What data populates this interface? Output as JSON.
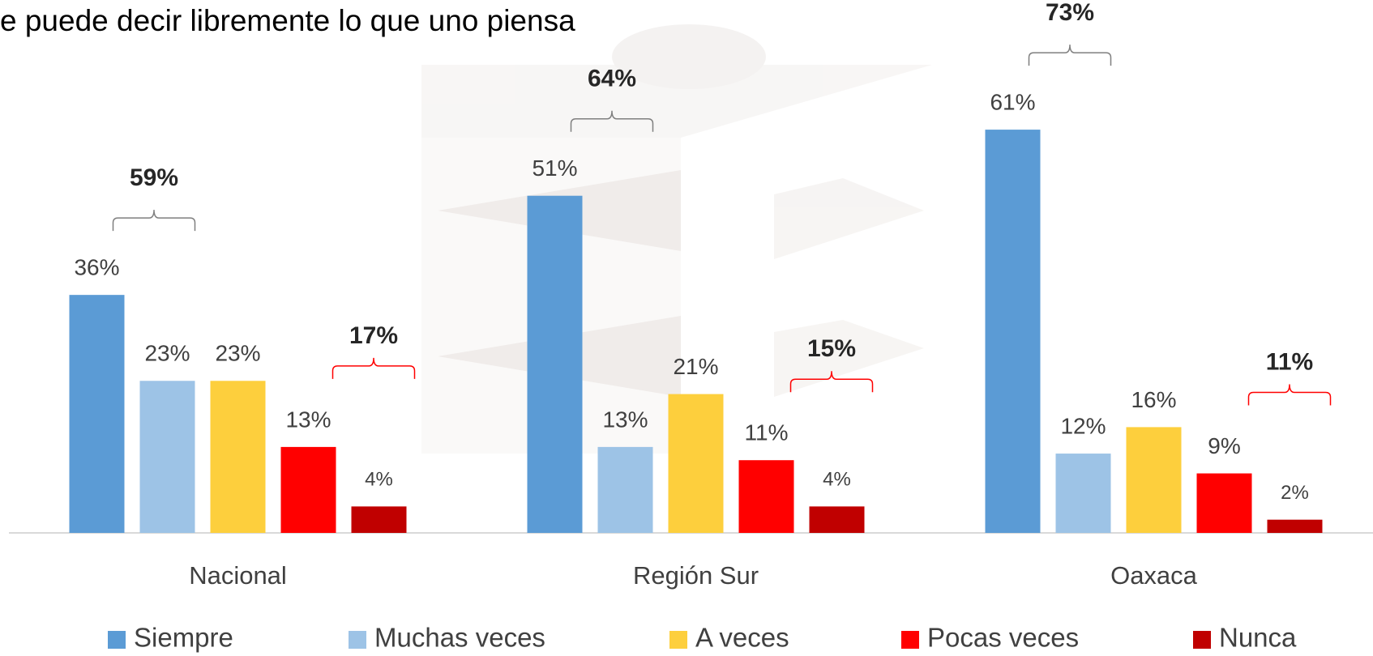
{
  "chart_data": {
    "type": "bar",
    "title": "e puede decir libremente lo que uno piensa",
    "categories": [
      "Nacional",
      "Región Sur",
      "Oaxaca"
    ],
    "series": [
      {
        "name": "Siempre",
        "color": "#5b9bd5",
        "values": [
          36,
          51,
          61
        ],
        "value_labels": [
          "36%",
          "51%",
          "61%"
        ]
      },
      {
        "name": "Muchas veces",
        "color": "#9dc3e6",
        "values": [
          23,
          13,
          12
        ],
        "value_labels": [
          "23%",
          "13%",
          "12%"
        ]
      },
      {
        "name": "A veces",
        "color": "#fdcf3d",
        "values": [
          23,
          21,
          16
        ],
        "value_labels": [
          "23%",
          "21%",
          "16%"
        ]
      },
      {
        "name": "Pocas veces",
        "color": "#ff0000",
        "values": [
          13,
          11,
          9
        ],
        "value_labels": [
          "13%",
          "11%",
          "9%"
        ]
      },
      {
        "name": "Nunca",
        "color": "#c00000",
        "values": [
          4,
          4,
          2
        ],
        "value_labels": [
          "4%",
          "4%",
          "2%"
        ]
      }
    ],
    "top_brackets": [
      "59%",
      "64%",
      "73%"
    ],
    "bottom_brackets": [
      "17%",
      "15%",
      "11%"
    ],
    "ylim": [
      0,
      80
    ],
    "legend": "bottom"
  }
}
